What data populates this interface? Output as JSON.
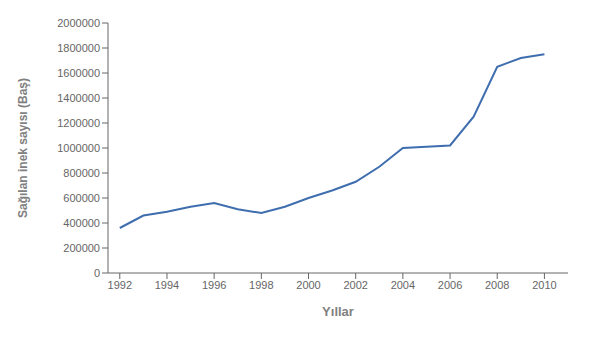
{
  "chart_data": {
    "type": "line",
    "x": [
      1992,
      1993,
      1994,
      1995,
      1996,
      1997,
      1998,
      1999,
      2000,
      2001,
      2002,
      2003,
      2004,
      2005,
      2006,
      2007,
      2008,
      2009,
      2010
    ],
    "values": [
      360000,
      460000,
      490000,
      530000,
      560000,
      510000,
      480000,
      530000,
      600000,
      660000,
      730000,
      850000,
      1000000,
      1010000,
      1020000,
      1250000,
      1650000,
      1720000,
      1750000
    ],
    "color": "#3F6EAF",
    "xlabel": "Yıllar",
    "ylabel": "Sağılan inek sayısı (Baş)",
    "xlim": [
      1991.5,
      2011.0
    ],
    "ylim": [
      0,
      2000000
    ],
    "xticks": [
      1992,
      1994,
      1996,
      1998,
      2000,
      2002,
      2004,
      2006,
      2008,
      2010
    ],
    "yticks": [
      0,
      200000,
      400000,
      600000,
      800000,
      1000000,
      1200000,
      1400000,
      1600000,
      1800000,
      2000000
    ],
    "grid": false
  }
}
